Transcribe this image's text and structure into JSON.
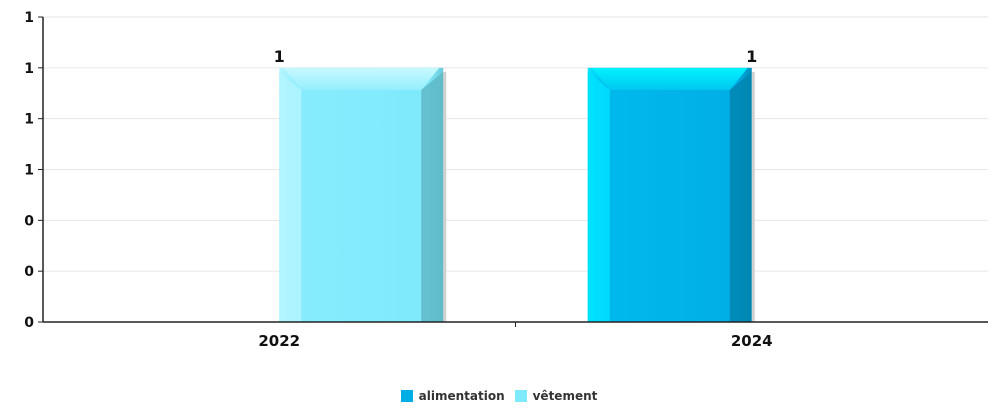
{
  "chart_data": {
    "type": "bar",
    "categories": [
      "2022",
      "2024"
    ],
    "series": [
      {
        "name": "alimentation",
        "color": "#00AEE6",
        "values": [
          0,
          1
        ]
      },
      {
        "name": "vêtement",
        "color": "#7FEAFD",
        "values": [
          1,
          0
        ]
      }
    ],
    "ylim": [
      0,
      1.2
    ],
    "yticks": [
      0,
      0.2,
      0.4,
      0.6,
      0.8,
      1.0,
      1.2
    ],
    "ytick_labels": [
      "0",
      "0",
      "0",
      "1",
      "1",
      "1",
      "1"
    ],
    "data_labels": [
      "1",
      "1"
    ],
    "grid": true,
    "legend_position": "bottom-center",
    "title": "",
    "xlabel": "",
    "ylabel": ""
  }
}
